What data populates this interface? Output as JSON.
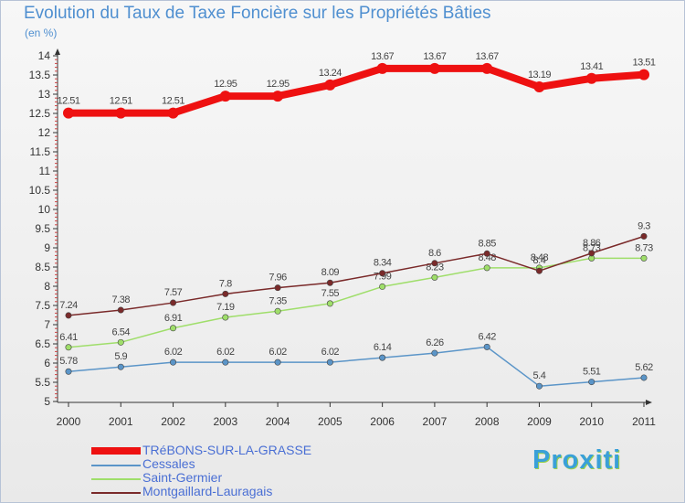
{
  "chart_data": {
    "type": "line",
    "title": "Evolution du Taux de Taxe Foncière sur les Propriétés Bâties",
    "subtitle": "(en %)",
    "x": [
      "2000",
      "2001",
      "2002",
      "2003",
      "2004",
      "2005",
      "2006",
      "2007",
      "2008",
      "2009",
      "2010",
      "2011"
    ],
    "y_ticks": [
      "5",
      "5.5",
      "6",
      "6.5",
      "7",
      "7.5",
      "8",
      "8.5",
      "9",
      "9.5",
      "10",
      "10.5",
      "11",
      "11.5",
      "12",
      "12.5",
      "13",
      "13.5",
      "14"
    ],
    "ylim": [
      5,
      14
    ],
    "grid": false,
    "legend_position": "bottom-left",
    "series": [
      {
        "name": "TRéBONS-SUR-LA-GRASSE",
        "color": "#ee1111",
        "values": [
          12.51,
          12.51,
          12.51,
          12.95,
          12.95,
          13.24,
          13.67,
          13.67,
          13.67,
          13.19,
          13.41,
          13.51
        ],
        "labels": [
          "12.51",
          "12.51",
          "12.51",
          "12.95",
          "12.95",
          "13.24",
          "13.67",
          "13.67",
          "13.67",
          "13.19",
          "13.41",
          "13.51"
        ]
      },
      {
        "name": "Cessales",
        "color": "#5b95c8",
        "values": [
          5.78,
          5.9,
          6.02,
          6.02,
          6.02,
          6.02,
          6.14,
          6.26,
          6.42,
          5.4,
          5.51,
          5.62
        ],
        "labels": [
          "5.78",
          "5.9",
          "6.02",
          "6.02",
          "6.02",
          "6.02",
          "6.14",
          "6.26",
          "6.42",
          "5.4",
          "5.51",
          "5.62"
        ]
      },
      {
        "name": "Saint-Germier",
        "color": "#9fde6a",
        "values": [
          6.41,
          6.54,
          6.91,
          7.19,
          7.35,
          7.55,
          7.99,
          8.23,
          8.48,
          8.48,
          8.73,
          8.73
        ],
        "labels": [
          "6.41",
          "6.54",
          "6.91",
          "7.19",
          "7.35",
          "7.55",
          "7.99",
          "8.23",
          "8.48",
          "8.48",
          "8.73",
          "8.73"
        ]
      },
      {
        "name": "Montgaillard-Lauragais",
        "color": "#7a2a2a",
        "values": [
          7.24,
          7.38,
          7.57,
          7.8,
          7.96,
          8.09,
          8.34,
          8.6,
          8.85,
          8.4,
          8.86,
          9.3
        ],
        "labels": [
          "7.24",
          "7.38",
          "7.57",
          "7.8",
          "7.96",
          "8.09",
          "8.34",
          "8.6",
          "8.85",
          "8.4",
          "8.86",
          "9.3"
        ]
      }
    ]
  },
  "legend": {
    "items": [
      "TRéBONS-SUR-LA-GRASSE",
      "Cessales",
      "Saint-Germier",
      "Montgaillard-Lauragais"
    ]
  },
  "logo": {
    "text": "Proxiti"
  }
}
